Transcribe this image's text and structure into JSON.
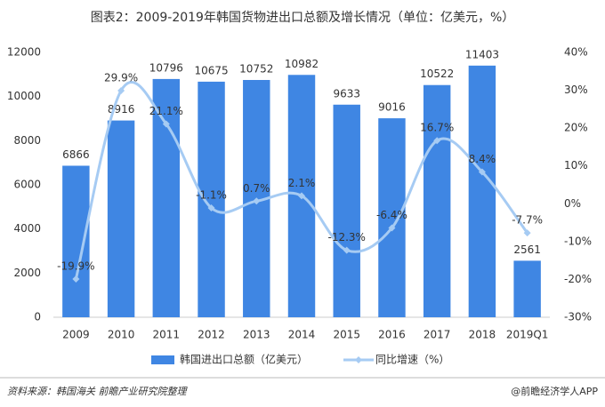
{
  "chart_data": {
    "type": "bar-line",
    "title": "图表2：2009-2019年韩国货物进出口总额及增长情况（单位：亿美元，%）",
    "categories": [
      "2009",
      "2010",
      "2011",
      "2012",
      "2013",
      "2014",
      "2015",
      "2016",
      "2017",
      "2018",
      "2019Q1"
    ],
    "series": [
      {
        "name": "韩国进出口总额（亿美元）",
        "color": "#3f86e3",
        "type": "bar",
        "values": [
          6866,
          8916,
          10796,
          10675,
          10752,
          10982,
          9633,
          9016,
          10522,
          11403,
          2561
        ]
      },
      {
        "name": "同比增速（%）",
        "color": "#a6cbf3",
        "type": "line",
        "axis": "y2",
        "values": [
          -19.9,
          29.9,
          21.1,
          -1.1,
          0.7,
          2.1,
          -12.3,
          -6.4,
          16.7,
          8.4,
          -7.7
        ],
        "value_labels": [
          "-19.9%",
          "29.9%",
          "21.1%",
          "-1.1%",
          "0.7%",
          "2.1%",
          "-12.3%",
          "-6.4%",
          "16.7%",
          "8.4%",
          "-7.7%"
        ]
      }
    ],
    "ylim": [
      0,
      12000
    ],
    "yticks": [
      0,
      2000,
      4000,
      6000,
      8000,
      10000,
      12000
    ],
    "y2lim": [
      -30,
      40
    ],
    "y2ticks": [
      {
        "value": -30,
        "label": "-30%"
      },
      {
        "value": -20,
        "label": "-20%"
      },
      {
        "value": -10,
        "label": "-10%"
      },
      {
        "value": 0,
        "label": "0%"
      },
      {
        "value": 10,
        "label": "10%"
      },
      {
        "value": 20,
        "label": "20%"
      },
      {
        "value": 30,
        "label": "30%"
      },
      {
        "value": 40,
        "label": "40%"
      }
    ],
    "legend": "bottom",
    "source": "资料来源：韩国海关 前瞻产业研究院整理",
    "credit": "@前瞻经济学人APP"
  }
}
